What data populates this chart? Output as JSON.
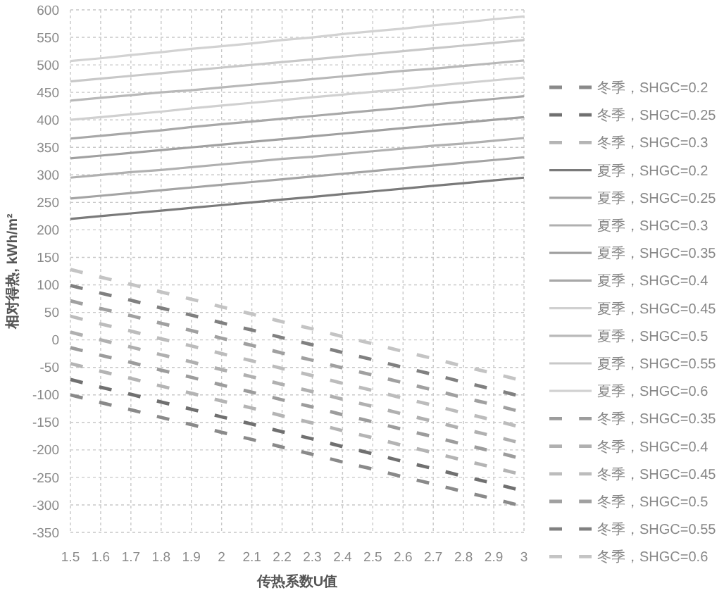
{
  "chart_data": {
    "type": "line",
    "xlabel": "传热系数U值",
    "ylabel": "相对得热, kWh/m²",
    "x": [
      1.5,
      1.6,
      1.7,
      1.8,
      1.9,
      2,
      2.1,
      2.2,
      2.3,
      2.4,
      2.5,
      2.6,
      2.7,
      2.8,
      2.9,
      3
    ],
    "xlim": [
      1.5,
      3
    ],
    "xticks": [
      1.5,
      1.6,
      1.7,
      1.8,
      1.9,
      2,
      2.1,
      2.2,
      2.3,
      2.4,
      2.5,
      2.6,
      2.7,
      2.8,
      2.9,
      3
    ],
    "ylim": [
      -350,
      600
    ],
    "yticks": [
      -350,
      -300,
      -250,
      -200,
      -150,
      -100,
      -50,
      0,
      50,
      100,
      150,
      200,
      250,
      300,
      350,
      400,
      450,
      500,
      550,
      600
    ],
    "grid": true,
    "legend": "right",
    "series": [
      {
        "name": "冬季，SHGC=0.2",
        "color": "#8a8a8a",
        "line_style": "dashed",
        "values": [
          -100,
          -114,
          -127,
          -141,
          -154,
          -168,
          -181,
          -195,
          -208,
          -222,
          -235,
          -249,
          -262,
          -276,
          -289,
          -303
        ]
      },
      {
        "name": "冬季，SHGC=0.25",
        "color": "#707070",
        "line_style": "dashed",
        "values": [
          -72,
          -86,
          -99,
          -113,
          -126,
          -140,
          -153,
          -167,
          -180,
          -194,
          -207,
          -221,
          -234,
          -248,
          -261,
          -275
        ]
      },
      {
        "name": "冬季，SHGC=0.3",
        "color": "#b4b4b4",
        "line_style": "dashed",
        "values": [
          -43,
          -57,
          -70,
          -84,
          -97,
          -111,
          -124,
          -138,
          -151,
          -165,
          -178,
          -192,
          -205,
          -219,
          -232,
          -246
        ]
      },
      {
        "name": "夏季，SHGC=0.2",
        "color": "#7a7a7a",
        "line_style": "solid",
        "values": [
          220,
          225,
          230,
          235,
          240,
          245,
          250,
          255,
          260,
          265,
          270,
          275,
          280,
          285,
          290,
          295
        ]
      },
      {
        "name": "夏季，SHGC=0.25",
        "color": "#a4a4a4",
        "line_style": "solid",
        "values": [
          257,
          262,
          267,
          272,
          277,
          282,
          287,
          292,
          297,
          302,
          307,
          312,
          317,
          322,
          327,
          332
        ]
      },
      {
        "name": "夏季，SHGC=0.3",
        "color": "#b0b0b0",
        "line_style": "solid",
        "values": [
          295,
          300,
          305,
          309,
          314,
          319,
          324,
          329,
          333,
          338,
          343,
          348,
          353,
          357,
          362,
          367
        ]
      },
      {
        "name": "夏季，SHGC=0.35",
        "color": "#a0a0a0",
        "line_style": "solid",
        "values": [
          330,
          335,
          340,
          345,
          350,
          355,
          360,
          365,
          370,
          375,
          380,
          385,
          390,
          395,
          400,
          405
        ]
      },
      {
        "name": "夏季，SHGC=0.4",
        "color": "#a8a8a8",
        "line_style": "solid",
        "values": [
          366,
          371,
          376,
          381,
          387,
          392,
          397,
          402,
          407,
          412,
          417,
          422,
          428,
          433,
          438,
          443
        ]
      },
      {
        "name": "夏季，SHGC=0.45",
        "color": "#d0d0d0",
        "line_style": "solid",
        "values": [
          400,
          405,
          410,
          415,
          421,
          426,
          431,
          436,
          441,
          446,
          451,
          456,
          462,
          467,
          472,
          477
        ]
      },
      {
        "name": "夏季，SHGC=0.5",
        "color": "#b8b8b8",
        "line_style": "solid",
        "values": [
          435,
          440,
          445,
          450,
          454,
          459,
          464,
          469,
          474,
          479,
          484,
          489,
          493,
          498,
          503,
          508
        ]
      },
      {
        "name": "夏季，SHGC=0.55",
        "color": "#c8c8c8",
        "line_style": "solid",
        "values": [
          470,
          475,
          480,
          485,
          490,
          495,
          500,
          505,
          510,
          515,
          520,
          525,
          530,
          535,
          540,
          545
        ]
      },
      {
        "name": "夏季，SHGC=0.6",
        "color": "#d2d2d2",
        "line_style": "solid",
        "values": [
          507,
          512,
          518,
          523,
          529,
          534,
          539,
          545,
          550,
          556,
          561,
          566,
          572,
          577,
          583,
          588
        ]
      },
      {
        "name": "冬季，SHGC=0.35",
        "color": "#9c9c9c",
        "line_style": "dashed",
        "values": [
          -14,
          -28,
          -41,
          -55,
          -68,
          -82,
          -95,
          -109,
          -122,
          -136,
          -149,
          -163,
          -176,
          -190,
          -203,
          -217
        ]
      },
      {
        "name": "冬季，SHGC=0.4",
        "color": "#b0b0b0",
        "line_style": "dashed",
        "values": [
          14,
          0,
          -13,
          -27,
          -40,
          -54,
          -67,
          -81,
          -94,
          -108,
          -121,
          -135,
          -148,
          -162,
          -175,
          -189
        ]
      },
      {
        "name": "冬季，SHGC=0.45",
        "color": "#bcbcbc",
        "line_style": "dashed",
        "values": [
          43,
          29,
          16,
          2,
          -11,
          -25,
          -38,
          -52,
          -65,
          -79,
          -92,
          -106,
          -119,
          -133,
          -146,
          -160
        ]
      },
      {
        "name": "冬季，SHGC=0.5",
        "color": "#a0a0a0",
        "line_style": "dashed",
        "values": [
          71,
          57,
          44,
          30,
          17,
          3,
          -10,
          -24,
          -37,
          -51,
          -64,
          -78,
          -91,
          -105,
          -118,
          -132
        ]
      },
      {
        "name": "冬季，SHGC=0.55",
        "color": "#808080",
        "line_style": "dashed",
        "values": [
          99,
          85,
          72,
          58,
          45,
          31,
          18,
          4,
          -9,
          -23,
          -36,
          -50,
          -63,
          -77,
          -90,
          -104
        ]
      },
      {
        "name": "冬季，SHGC=0.6",
        "color": "#c4c4c4",
        "line_style": "dashed",
        "values": [
          128,
          114,
          101,
          87,
          74,
          60,
          47,
          33,
          20,
          6,
          -7,
          -21,
          -34,
          -48,
          -61,
          -75
        ]
      }
    ]
  }
}
